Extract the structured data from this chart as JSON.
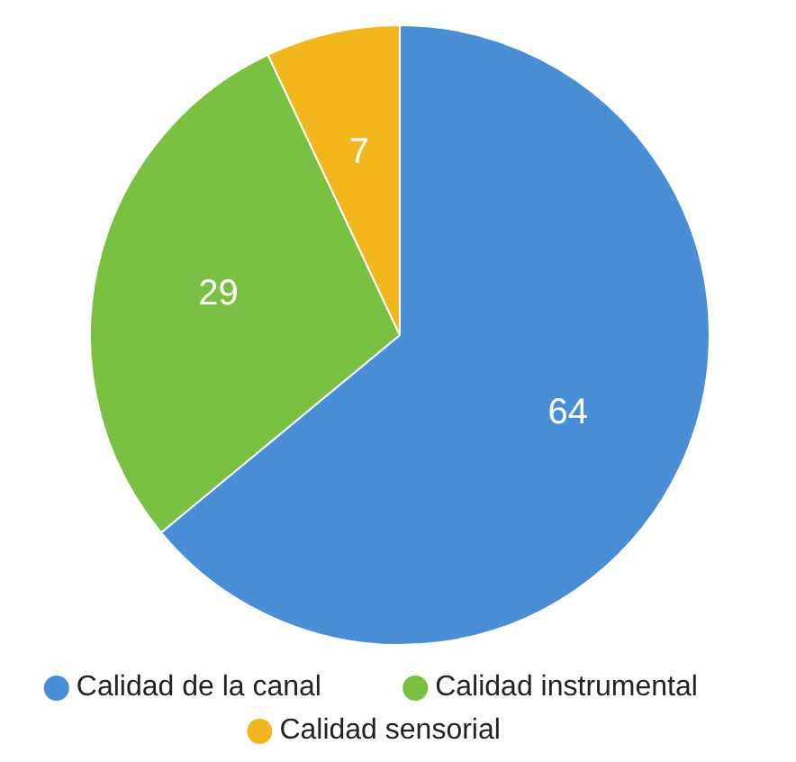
{
  "chart_data": {
    "type": "pie",
    "categories": [
      "Calidad de la canal",
      "Calidad instrumental",
      "Calidad sensorial"
    ],
    "values": [
      64,
      29,
      7
    ],
    "colors": [
      "#4a8fd6",
      "#7ac143",
      "#f2b71c"
    ],
    "data_labels": true,
    "legend": "bottom"
  }
}
